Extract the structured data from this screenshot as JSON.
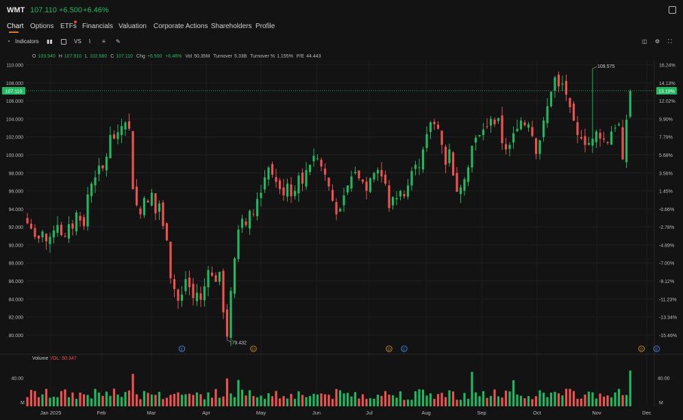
{
  "header": {
    "symbol": "WMT",
    "price": "107.110",
    "change": "+6.500",
    "change_pct": "+6.46%"
  },
  "tabs": [
    {
      "label": "Chart"
    },
    {
      "label": "Options"
    },
    {
      "label": "ETFs"
    },
    {
      "label": "Financials"
    },
    {
      "label": "Valuation"
    },
    {
      "label": "Corporate Actions"
    },
    {
      "label": "Shareholders"
    },
    {
      "label": "Profile"
    }
  ],
  "toolbar": {
    "indicators_label": "Indicators",
    "vs_label": "VS"
  },
  "ohlc": {
    "o_label": "O",
    "o": "103.940",
    "h_label": "H",
    "h": "107.910",
    "l_label": "L",
    "l": "102.680",
    "c_label": "C",
    "c": "107.110",
    "chg_label": "Chg",
    "chg": "+6.500",
    "chg_pct": "+6.46%",
    "vol_label": "Vol",
    "vol": "50.35M",
    "turnover_label": "Turnover",
    "turnover": "5.33B",
    "turnover_pct_label": "Turnover %",
    "turnover_pct": "1.155%",
    "pe_label": "P/E",
    "pe": "44.443"
  },
  "volume_panel": {
    "label": "Volume",
    "value_label": "VOL: 50.347",
    "tick": "40.00",
    "unit": "M"
  },
  "colors": {
    "up": "#21b862",
    "down": "#ef5350",
    "background": "#131313",
    "accent": "#e07a2b"
  },
  "chart_data": {
    "type": "candlestick",
    "y_ticks": [
      "110.000",
      "108.000",
      "106.000",
      "104.000",
      "102.000",
      "100.000",
      "98.000",
      "96.000",
      "94.000",
      "92.000",
      "90.000",
      "88.000",
      "86.000",
      "84.000",
      "82.000",
      "80.000"
    ],
    "y_pct_ticks": [
      "16.24%",
      "14.13%",
      "12.02%",
      "9.90%",
      "7.79%",
      "5.68%",
      "3.56%",
      "1.45%",
      "-0.66%",
      "-2.78%",
      "-4.89%",
      "-7.00%",
      "-9.12%",
      "-11.23%",
      "-13.34%",
      "-15.46%"
    ],
    "ylim": [
      79.0,
      110.5
    ],
    "x_labels": [
      "Jan 2025",
      "Feb",
      "Mar",
      "Apr",
      "May",
      "Jun",
      "Jul",
      "Aug",
      "Sep",
      "Oct",
      "Nov",
      "Dec"
    ],
    "last_price_label": "107.110",
    "last_price_pct": "13.19%",
    "high_annotation": {
      "label": "109.575",
      "value": 109.575
    },
    "low_annotation": {
      "label": "79.432",
      "value": 79.432
    },
    "events": [
      {
        "type": "E",
        "bar": 41
      },
      {
        "type": "D",
        "bar": 60
      },
      {
        "type": "D",
        "bar": 96
      },
      {
        "type": "E",
        "bar": 100
      },
      {
        "type": "D",
        "bar": 163
      },
      {
        "type": "E",
        "bar": 167
      }
    ],
    "close_path": [
      92.4,
      91.8,
      90.9,
      90.7,
      91.5,
      90.4,
      90.9,
      91.6,
      92.2,
      91.1,
      90.9,
      92.3,
      91.8,
      93.6,
      92.7,
      92.1,
      95.6,
      96.8,
      97.5,
      98.8,
      98.5,
      99.8,
      102.2,
      101.8,
      102.5,
      103.2,
      103.6,
      102.9,
      96.2,
      94.4,
      93.4,
      95.2,
      94.7,
      95.8,
      93.5,
      94.6,
      92.1,
      90.5,
      86.3,
      85.1,
      83.8,
      84.5,
      86.2,
      85.3,
      84.1,
      84.7,
      83.9,
      85.4,
      87.2,
      86.6,
      85.9,
      87.0,
      82.5,
      79.8,
      84.9,
      88.5,
      91.7,
      92.9,
      92.2,
      93.8,
      93.4,
      95.1,
      95.8,
      97.5,
      98.6,
      97.8,
      97.0,
      96.2,
      95.5,
      96.8,
      95.4,
      96.0,
      97.7,
      96.8,
      98.3,
      98.9,
      99.9,
      99.6,
      98.7,
      97.8,
      96.5,
      94.9,
      93.4,
      94.0,
      95.5,
      96.6,
      97.6,
      98.1,
      97.4,
      97.0,
      96.0,
      97.4,
      98.0,
      98.3,
      97.6,
      96.8,
      94.1,
      95.3,
      95.2,
      96.0,
      95.4,
      96.6,
      98.2,
      98.9,
      98.6,
      100.6,
      102.3,
      103.6,
      103.4,
      102.9,
      101.1,
      98.9,
      100.6,
      97.7,
      95.9,
      96.4,
      97.3,
      98.6,
      101.0,
      101.9,
      102.2,
      102.8,
      103.1,
      104.0,
      103.4,
      104.1,
      101.3,
      100.6,
      101.1,
      102.4,
      102.9,
      103.8,
      103.3,
      103.4,
      102.1,
      100.1,
      101.6,
      103.8,
      105.4,
      107.0,
      108.6,
      107.6,
      107.9,
      106.7,
      105.3,
      103.8,
      102.2,
      101.8,
      101.1,
      101.3,
      101.8,
      102.6,
      101.8,
      101.7,
      101.3,
      102.6,
      103.0,
      103.4,
      99.5,
      103.9,
      107.11
    ],
    "volume_max": 56
  }
}
